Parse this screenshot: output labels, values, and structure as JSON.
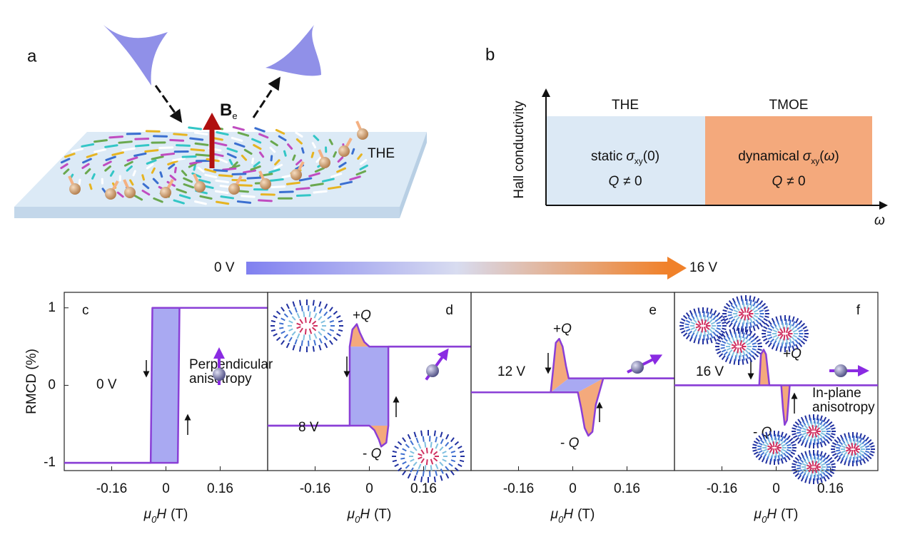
{
  "panel_a": {
    "label": "a",
    "field_symbol": "B",
    "field_subscript": "e",
    "effect": "THE"
  },
  "panel_b": {
    "label": "b",
    "y_axis_label": "Hall conductivity",
    "x_axis_label": "ω",
    "regions": [
      {
        "title": "THE",
        "prefix": "static",
        "sigma": "σ",
        "sub": "xy",
        "open": "(",
        "arg": "0",
        "close": ")",
        "q": "Q",
        "condition": "≠ 0"
      },
      {
        "title": "TMOE",
        "prefix": "dynamical",
        "sigma": "σ",
        "sub": "xy",
        "open": "(",
        "arg": "ω",
        "close": ")",
        "q": "Q",
        "condition": "≠ 0"
      }
    ]
  },
  "colorbar": {
    "start": "0 V",
    "end": "16 V"
  },
  "chart_data": [
    {
      "type": "line",
      "panel_label": "c",
      "y_axis_label": "RMCD (%)",
      "x_axis_label": [
        "μ",
        "0",
        "H",
        "(T)"
      ],
      "voltage": "0 V",
      "anisotropy": [
        "Perpendicular",
        "anisotropy"
      ],
      "xlim": [
        -0.3,
        0.3
      ],
      "ylim": [
        -1.1,
        1.2
      ],
      "xticks": [
        -0.16,
        0,
        0.16
      ],
      "yticks": [
        -1,
        0,
        1
      ],
      "areas": [
        {
          "color": "#a9a9f2",
          "x": [
            -0.045,
            0.035,
            0.04,
            -0.04
          ],
          "values": [
            -1,
            -1,
            1,
            1
          ]
        }
      ],
      "series": [
        {
          "color": "#8a3fd6",
          "x": [
            0.3,
            -0.04,
            -0.045,
            -0.3
          ],
          "values": [
            1,
            1,
            -1,
            -1
          ]
        },
        {
          "color": "#8a3fd6",
          "x": [
            -0.3,
            0.035,
            0.04,
            0.3
          ],
          "values": [
            -1,
            -1,
            1,
            1
          ]
        }
      ]
    },
    {
      "type": "line",
      "panel_label": "d",
      "x_axis_label": [
        "μ",
        "0",
        "H",
        "(T)"
      ],
      "voltage": "8 V",
      "plus_q": [
        "+",
        "Q"
      ],
      "minus_q": [
        "- ",
        "Q"
      ],
      "xlim": [
        -0.3,
        0.3
      ],
      "ylim": [
        -1.1,
        1.2
      ],
      "xticks": [
        -0.16,
        0,
        0.16
      ],
      "areas": [
        {
          "color": "#f4a97c",
          "x": [
            -0.058,
            -0.05,
            -0.037,
            -0.028,
            -0.015,
            0
          ],
          "values": [
            0.5,
            0.72,
            0.79,
            0.68,
            0.56,
            0.5
          ]
        },
        {
          "color": "#f4a97c",
          "x": [
            0.056,
            0.05,
            0.035,
            0.028,
            0.015,
            0
          ],
          "values": [
            -0.52,
            -0.74,
            -0.79,
            -0.7,
            -0.58,
            -0.52
          ]
        },
        {
          "color": "#a9a9f2",
          "x": [
            -0.058,
            -0.058,
            0.056,
            0.056
          ],
          "values": [
            -0.52,
            0.5,
            0.5,
            -0.52
          ]
        }
      ],
      "series": [
        {
          "color": "#8a3fd6",
          "x": [
            0.3,
            0,
            -0.015,
            -0.028,
            -0.037,
            -0.05,
            -0.058,
            -0.058,
            -0.3
          ],
          "values": [
            0.5,
            0.5,
            0.56,
            0.68,
            0.79,
            0.72,
            0.5,
            -0.52,
            -0.52
          ]
        },
        {
          "color": "#8a3fd6",
          "x": [
            -0.3,
            0,
            0.015,
            0.028,
            0.035,
            0.05,
            0.056,
            0.056,
            0.3
          ],
          "values": [
            -0.52,
            -0.52,
            -0.58,
            -0.7,
            -0.79,
            -0.74,
            -0.52,
            0.5,
            0.5
          ]
        }
      ]
    },
    {
      "type": "line",
      "panel_label": "e",
      "x_axis_label": [
        "μ",
        "0",
        "H",
        "(T)"
      ],
      "voltage": "12 V",
      "plus_q": [
        "+",
        "Q"
      ],
      "minus_q": [
        "- ",
        "Q"
      ],
      "xlim": [
        -0.3,
        0.3
      ],
      "ylim": [
        -1.1,
        1.2
      ],
      "xticks": [
        -0.16,
        0,
        0.16
      ],
      "areas": [
        {
          "color": "#f4a97c",
          "x": [
            -0.065,
            -0.058,
            -0.05,
            -0.04,
            -0.03,
            -0.02,
            -0.012
          ],
          "values": [
            -0.09,
            0.2,
            0.55,
            0.6,
            0.5,
            0.25,
            0.09
          ]
        },
        {
          "color": "#f4a97c",
          "x": [
            0.09,
            0.068,
            0.058,
            0.046,
            0.035,
            0.025,
            0.015
          ],
          "values": [
            0.09,
            -0.25,
            -0.6,
            -0.65,
            -0.55,
            -0.3,
            -0.09
          ]
        },
        {
          "color": "#a9a9f2",
          "x": [
            -0.065,
            -0.012,
            0.09,
            0.015
          ],
          "values": [
            -0.09,
            0.09,
            0.09,
            -0.09
          ]
        }
      ],
      "series": [
        {
          "color": "#8a3fd6",
          "x": [
            0.3,
            -0.012,
            -0.02,
            -0.03,
            -0.04,
            -0.05,
            -0.058,
            -0.065,
            -0.3
          ],
          "values": [
            0.09,
            0.09,
            0.25,
            0.5,
            0.6,
            0.55,
            0.2,
            -0.09,
            -0.09
          ]
        },
        {
          "color": "#8a3fd6",
          "x": [
            -0.3,
            0.015,
            0.025,
            0.035,
            0.046,
            0.058,
            0.068,
            0.09,
            0.3
          ],
          "values": [
            -0.09,
            -0.09,
            -0.3,
            -0.55,
            -0.65,
            -0.6,
            -0.25,
            0.09,
            0.09
          ]
        }
      ]
    },
    {
      "type": "line",
      "panel_label": "f",
      "x_axis_label": [
        "μ",
        "0",
        "H",
        "(T)"
      ],
      "voltage": "16 V",
      "plus_q": [
        "+",
        "Q"
      ],
      "minus_q": [
        "- ",
        "Q"
      ],
      "anisotropy": [
        "In-plane",
        "anisotropy"
      ],
      "xlim": [
        -0.3,
        0.3
      ],
      "ylim": [
        -1.1,
        1.2
      ],
      "xticks": [
        -0.16,
        0,
        0.16
      ],
      "areas": [
        {
          "color": "#f4a97c",
          "x": [
            -0.05,
            -0.045,
            -0.037,
            -0.03,
            -0.025,
            -0.02
          ],
          "values": [
            0,
            0.4,
            0.46,
            0.4,
            0.2,
            0
          ]
        },
        {
          "color": "#f4a97c",
          "x": [
            0.015,
            0.02,
            0.025,
            0.032,
            0.04
          ],
          "values": [
            0,
            -0.3,
            -0.51,
            -0.45,
            0
          ]
        }
      ],
      "series": [
        {
          "color": "#8a3fd6",
          "x": [
            0.3,
            -0.02,
            -0.025,
            -0.03,
            -0.037,
            -0.045,
            -0.05,
            -0.3
          ],
          "values": [
            0,
            0,
            0.2,
            0.4,
            0.46,
            0.4,
            0,
            0
          ]
        },
        {
          "color": "#8a3fd6",
          "x": [
            -0.3,
            0.015,
            0.02,
            0.025,
            0.032,
            0.04,
            0.3
          ],
          "values": [
            0,
            0,
            -0.3,
            -0.51,
            -0.45,
            0,
            0
          ]
        }
      ]
    }
  ]
}
